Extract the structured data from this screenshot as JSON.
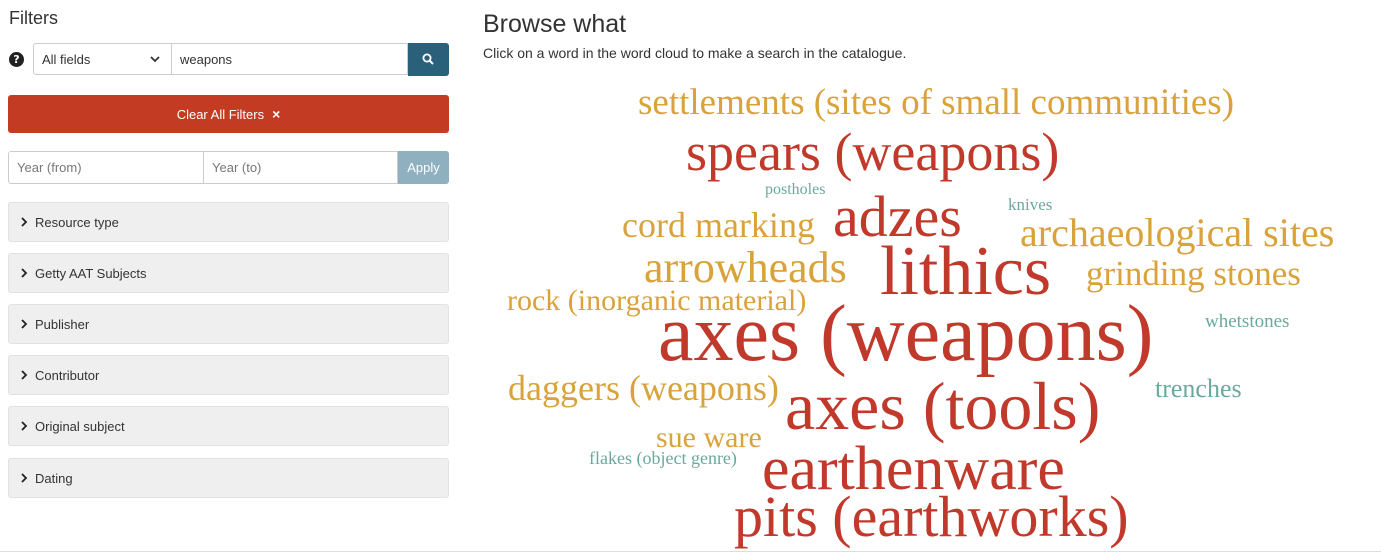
{
  "sidebar": {
    "title": "Filters",
    "help_icon": "question-circle-icon",
    "field_select": {
      "value": "All fields"
    },
    "search": {
      "value": "weapons"
    },
    "clear_button": {
      "label": "Clear All Filters",
      "icon": "×"
    },
    "year": {
      "from_placeholder": "Year (from)",
      "to_placeholder": "Year (to)",
      "apply_label": "Apply"
    },
    "facets": [
      {
        "label": "Resource type"
      },
      {
        "label": "Getty AAT Subjects"
      },
      {
        "label": "Publisher"
      },
      {
        "label": "Contributor"
      },
      {
        "label": "Original subject"
      },
      {
        "label": "Dating"
      }
    ]
  },
  "main": {
    "title": "Browse what",
    "subtitle": "Click on a word in the word cloud to make a search in the catalogue."
  },
  "colors": {
    "red": "#c0392b",
    "gold": "#d9a23a",
    "teal": "#6aaa9c",
    "search_button": "#2a6079",
    "clear_button": "#c23b22",
    "apply_button": "#8fb0bf"
  },
  "word_cloud": [
    {
      "text": "settlements (sites of small communities)",
      "color": "gold"
    },
    {
      "text": "spears (weapons)",
      "color": "red"
    },
    {
      "text": "postholes",
      "color": "teal"
    },
    {
      "text": "knives",
      "color": "teal"
    },
    {
      "text": "cord marking",
      "color": "gold"
    },
    {
      "text": "adzes",
      "color": "red"
    },
    {
      "text": "archaeological sites",
      "color": "gold"
    },
    {
      "text": "arrowheads",
      "color": "gold"
    },
    {
      "text": "lithics",
      "color": "red"
    },
    {
      "text": "grinding stones",
      "color": "gold"
    },
    {
      "text": "rock (inorganic material)",
      "color": "gold"
    },
    {
      "text": "axes (weapons)",
      "color": "red"
    },
    {
      "text": "whetstones",
      "color": "teal"
    },
    {
      "text": "daggers (weapons)",
      "color": "gold"
    },
    {
      "text": "axes (tools)",
      "color": "red"
    },
    {
      "text": "trenches",
      "color": "teal"
    },
    {
      "text": "sue ware",
      "color": "gold"
    },
    {
      "text": "flakes (object genre)",
      "color": "teal"
    },
    {
      "text": "earthenware",
      "color": "red"
    },
    {
      "text": "pits (earthworks)",
      "color": "red"
    }
  ]
}
